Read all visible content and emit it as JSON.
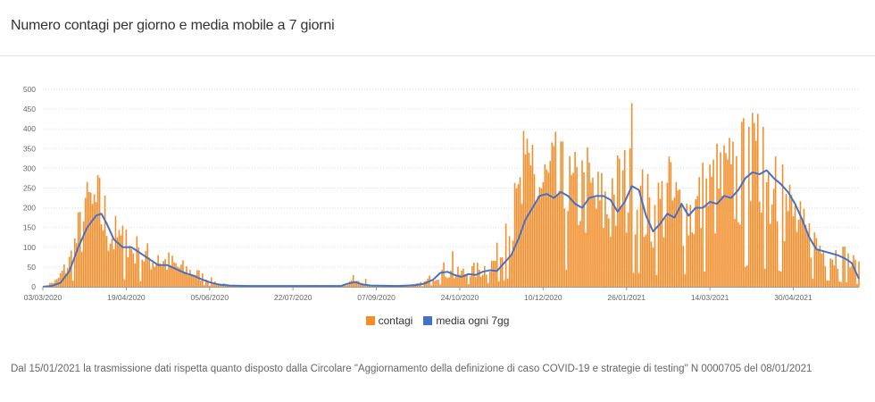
{
  "title": "Numero contagi per giorno e media mobile a 7 giorni",
  "footnote": "Dal 15/01/2021 la trasmissione dati rispetta quanto disposto dalla Circolare \"Aggiornamento della definizione di caso COVID-19 e strategie di testing\" N 0000705 del 08/01/2021",
  "colors": {
    "bars": "#f28e2b",
    "line": "#4472c4",
    "grid": "#dddddd",
    "axis": "#999999"
  },
  "chart_data": {
    "type": "bar",
    "title": "Numero contagi per giorno e media mobile a 7 giorni",
    "ylim": [
      0,
      500
    ],
    "yticks": [
      0,
      50,
      100,
      150,
      200,
      250,
      300,
      350,
      400,
      450,
      500
    ],
    "xticks": [
      "03/03/2020",
      "19/04/2020",
      "05/06/2020",
      "22/07/2020",
      "07/09/2020",
      "24/10/2020",
      "10/12/2020",
      "26/01/2021",
      "14/03/2021",
      "30/04/2021"
    ],
    "tick_step_days": 47,
    "total_days": 460,
    "grid": true,
    "legend": {
      "position": "bottom",
      "entries": [
        "contagi",
        "media ogni 7gg"
      ]
    },
    "series": [
      {
        "name": "contagi",
        "type": "bar",
        "anchors": [
          [
            0,
            0
          ],
          [
            8,
            15
          ],
          [
            15,
            60
          ],
          [
            22,
            150
          ],
          [
            28,
            200
          ],
          [
            33,
            180
          ],
          [
            40,
            120
          ],
          [
            47,
            100
          ],
          [
            55,
            80
          ],
          [
            63,
            65
          ],
          [
            70,
            60
          ],
          [
            78,
            45
          ],
          [
            85,
            35
          ],
          [
            92,
            20
          ],
          [
            99,
            8
          ],
          [
            106,
            3
          ],
          [
            120,
            2
          ],
          [
            140,
            2
          ],
          [
            160,
            3
          ],
          [
            170,
            3
          ],
          [
            175,
            12
          ],
          [
            180,
            8
          ],
          [
            185,
            3
          ],
          [
            200,
            3
          ],
          [
            210,
            5
          ],
          [
            215,
            10
          ],
          [
            220,
            25
          ],
          [
            226,
            40
          ],
          [
            232,
            30
          ],
          [
            238,
            35
          ],
          [
            245,
            40
          ],
          [
            252,
            50
          ],
          [
            258,
            80
          ],
          [
            264,
            150
          ],
          [
            270,
            220
          ],
          [
            276,
            260
          ],
          [
            282,
            240
          ],
          [
            288,
            250
          ],
          [
            294,
            230
          ],
          [
            300,
            220
          ],
          [
            306,
            240
          ],
          [
            313,
            200
          ],
          [
            320,
            190
          ],
          [
            326,
            240
          ],
          [
            332,
            230
          ],
          [
            338,
            200
          ],
          [
            344,
            170
          ],
          [
            350,
            210
          ],
          [
            356,
            200
          ],
          [
            362,
            180
          ],
          [
            368,
            190
          ],
          [
            374,
            220
          ],
          [
            380,
            240
          ],
          [
            386,
            250
          ],
          [
            392,
            260
          ],
          [
            398,
            290
          ],
          [
            404,
            280
          ],
          [
            410,
            260
          ],
          [
            416,
            220
          ],
          [
            422,
            180
          ],
          [
            428,
            130
          ],
          [
            434,
            110
          ],
          [
            440,
            90
          ],
          [
            446,
            80
          ],
          [
            452,
            70
          ],
          [
            458,
            50
          ],
          [
            460,
            40
          ]
        ],
        "noise": 0.55,
        "spikes": [
          [
            24,
            225
          ],
          [
            26,
            240
          ],
          [
            28,
            210
          ],
          [
            44,
            130
          ],
          [
            47,
            145
          ],
          [
            54,
            100
          ],
          [
            65,
            80
          ],
          [
            175,
            30
          ],
          [
            182,
            20
          ],
          [
            231,
            90
          ],
          [
            261,
            160
          ],
          [
            268,
            260
          ],
          [
            271,
            395
          ],
          [
            276,
            360
          ],
          [
            305,
            290
          ],
          [
            321,
            275
          ],
          [
            332,
            465
          ],
          [
            353,
            330
          ],
          [
            388,
            310
          ],
          [
            398,
            405
          ],
          [
            402,
            370
          ],
          [
            406,
            405
          ],
          [
            413,
            330
          ],
          [
            417,
            310
          ]
        ]
      },
      {
        "name": "media ogni 7gg",
        "type": "line",
        "points": [
          [
            0,
            0
          ],
          [
            5,
            2
          ],
          [
            10,
            10
          ],
          [
            15,
            40
          ],
          [
            20,
            100
          ],
          [
            25,
            150
          ],
          [
            30,
            180
          ],
          [
            33,
            185
          ],
          [
            36,
            160
          ],
          [
            40,
            120
          ],
          [
            45,
            100
          ],
          [
            50,
            100
          ],
          [
            55,
            85
          ],
          [
            60,
            70
          ],
          [
            65,
            55
          ],
          [
            70,
            55
          ],
          [
            75,
            45
          ],
          [
            80,
            35
          ],
          [
            85,
            28
          ],
          [
            90,
            18
          ],
          [
            95,
            10
          ],
          [
            100,
            5
          ],
          [
            105,
            3
          ],
          [
            115,
            2
          ],
          [
            130,
            2
          ],
          [
            150,
            2
          ],
          [
            160,
            2
          ],
          [
            168,
            2
          ],
          [
            172,
            8
          ],
          [
            176,
            12
          ],
          [
            180,
            6
          ],
          [
            185,
            3
          ],
          [
            200,
            2
          ],
          [
            210,
            4
          ],
          [
            215,
            8
          ],
          [
            220,
            18
          ],
          [
            224,
            35
          ],
          [
            228,
            38
          ],
          [
            232,
            30
          ],
          [
            236,
            25
          ],
          [
            240,
            32
          ],
          [
            244,
            30
          ],
          [
            248,
            38
          ],
          [
            252,
            42
          ],
          [
            256,
            40
          ],
          [
            260,
            60
          ],
          [
            264,
            80
          ],
          [
            268,
            120
          ],
          [
            272,
            170
          ],
          [
            276,
            200
          ],
          [
            280,
            230
          ],
          [
            284,
            235
          ],
          [
            288,
            225
          ],
          [
            292,
            240
          ],
          [
            296,
            230
          ],
          [
            300,
            210
          ],
          [
            304,
            200
          ],
          [
            308,
            225
          ],
          [
            312,
            230
          ],
          [
            316,
            230
          ],
          [
            320,
            220
          ],
          [
            324,
            190
          ],
          [
            328,
            215
          ],
          [
            332,
            255
          ],
          [
            336,
            245
          ],
          [
            340,
            180
          ],
          [
            344,
            140
          ],
          [
            348,
            160
          ],
          [
            352,
            185
          ],
          [
            356,
            175
          ],
          [
            360,
            210
          ],
          [
            364,
            180
          ],
          [
            368,
            200
          ],
          [
            372,
            200
          ],
          [
            376,
            215
          ],
          [
            380,
            210
          ],
          [
            384,
            230
          ],
          [
            388,
            225
          ],
          [
            392,
            245
          ],
          [
            396,
            275
          ],
          [
            400,
            290
          ],
          [
            404,
            285
          ],
          [
            408,
            295
          ],
          [
            412,
            275
          ],
          [
            416,
            260
          ],
          [
            420,
            240
          ],
          [
            424,
            210
          ],
          [
            428,
            170
          ],
          [
            432,
            125
          ],
          [
            436,
            95
          ],
          [
            440,
            90
          ],
          [
            444,
            85
          ],
          [
            448,
            80
          ],
          [
            452,
            72
          ],
          [
            456,
            60
          ],
          [
            460,
            20
          ]
        ]
      }
    ]
  }
}
